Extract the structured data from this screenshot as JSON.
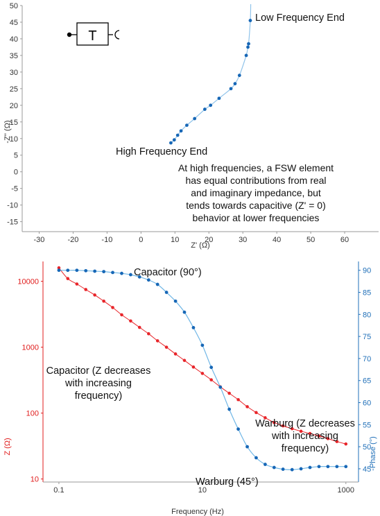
{
  "colors": {
    "nyquist_point": "#1767b6",
    "nyquist_line": "#8fc3ea",
    "z_series": "#e8252a",
    "phase_series": "#1767b6",
    "phase_line": "#6fb6e6",
    "axis": "#9a9a9a",
    "red_axis": "#e01b1b",
    "blue_axis": "#1f6fb8"
  },
  "chart_data": [
    {
      "type": "scatter",
      "xlabel": "Z' (Ω)",
      "ylabel": "-Z'' (Ω)",
      "xlim": [
        -35,
        70
      ],
      "ylim": [
        -18,
        50
      ],
      "x_ticks": [
        -30,
        -20,
        -10,
        0,
        10,
        20,
        30,
        40,
        50,
        60
      ],
      "y_ticks": [
        -15,
        -10,
        -5,
        0,
        5,
        10,
        15,
        20,
        25,
        30,
        35,
        40,
        45,
        50
      ],
      "series": [
        {
          "x": [
            8.8,
            9.8,
            10.8,
            11.8,
            13.5,
            15.8,
            18.8,
            20.5,
            23.0,
            26.5,
            27.7,
            29.0,
            31.0,
            31.5,
            31.7,
            32.2
          ],
          "y": [
            8.7,
            9.6,
            11.0,
            12.3,
            14.0,
            16.0,
            18.8,
            20.0,
            22.1,
            25.0,
            26.5,
            29.0,
            35.0,
            37.5,
            38.5,
            45.5
          ]
        }
      ],
      "circuit_symbol": "T",
      "annotations": {
        "low": "Low Frequency End",
        "high": "High Frequency End",
        "note_lines": [
          "At high frequencies, a FSW element",
          "has equal contributions from real",
          "and imaginary impedance, but",
          "tends towards capacitive (Z' = 0)",
          "behavior at lower frequencies"
        ]
      },
      "grid": false
    },
    {
      "type": "line",
      "xlabel": "Frequency (Hz)",
      "ylabel": "Z (Ω)",
      "ylabel_right": "-Phase (°)",
      "xscale": "log",
      "yscale": "log",
      "xlim": [
        0.06,
        1500
      ],
      "ylim": [
        9,
        20000
      ],
      "ylim_right": [
        42,
        92
      ],
      "x_ticks": [
        0.1,
        10,
        1000
      ],
      "x_tick_labels": [
        "0.1",
        "10",
        "1000"
      ],
      "y_ticks": [
        10,
        100,
        1000,
        10000
      ],
      "y_tick_labels": [
        "10",
        "100",
        "1000",
        "10000"
      ],
      "y_ticks_right": [
        45,
        50,
        55,
        60,
        65,
        70,
        75,
        80,
        85,
        90
      ],
      "series": [
        {
          "name": "Z",
          "axis": "left",
          "x": [
            0.1,
            0.133,
            0.178,
            0.237,
            0.316,
            0.422,
            0.562,
            0.75,
            1.0,
            1.33,
            1.78,
            2.37,
            3.16,
            4.22,
            5.62,
            7.5,
            10.0,
            13.3,
            17.8,
            23.7,
            31.6,
            42.2,
            56.2,
            75.0,
            100,
            133,
            178,
            237,
            316,
            422,
            562,
            750,
            1000
          ],
          "values": [
            16000,
            11000,
            9100,
            7500,
            6200,
            5000,
            4000,
            3100,
            2500,
            2000,
            1600,
            1250,
            1000,
            790,
            630,
            500,
            400,
            320,
            250,
            200,
            160,
            125,
            102,
            85,
            72,
            64,
            58,
            53,
            49,
            45,
            41,
            37,
            34
          ]
        },
        {
          "name": "-Phase",
          "axis": "right",
          "x": [
            0.1,
            0.133,
            0.178,
            0.237,
            0.316,
            0.422,
            0.562,
            0.75,
            1.0,
            1.33,
            1.78,
            2.37,
            3.16,
            4.22,
            5.62,
            7.5,
            10.0,
            13.3,
            17.8,
            23.7,
            31.6,
            42.2,
            56.2,
            75.0,
            100,
            133,
            178,
            237,
            316,
            422,
            562,
            750,
            1000
          ],
          "values": [
            90,
            90,
            90,
            89.9,
            89.8,
            89.7,
            89.5,
            89.3,
            89.0,
            88.5,
            87.8,
            86.8,
            85.0,
            83.0,
            80.5,
            77.0,
            73.0,
            68.0,
            63.5,
            58.5,
            54.0,
            50.0,
            47.5,
            46.0,
            45.3,
            44.9,
            44.8,
            45.0,
            45.3,
            45.5,
            45.5,
            45.5,
            45.5
          ]
        }
      ],
      "annotations": {
        "capacitor_phase": "Capacitor (90°)",
        "capacitor_z_lines": [
          "Capacitor (Z decreases",
          "with increasing",
          "frequency)"
        ],
        "warburg_z_lines": [
          "Warburg (Z decreases",
          "with increasing",
          "frequency)"
        ],
        "warburg_phase": "Warburg (45°)"
      },
      "grid": false
    }
  ]
}
